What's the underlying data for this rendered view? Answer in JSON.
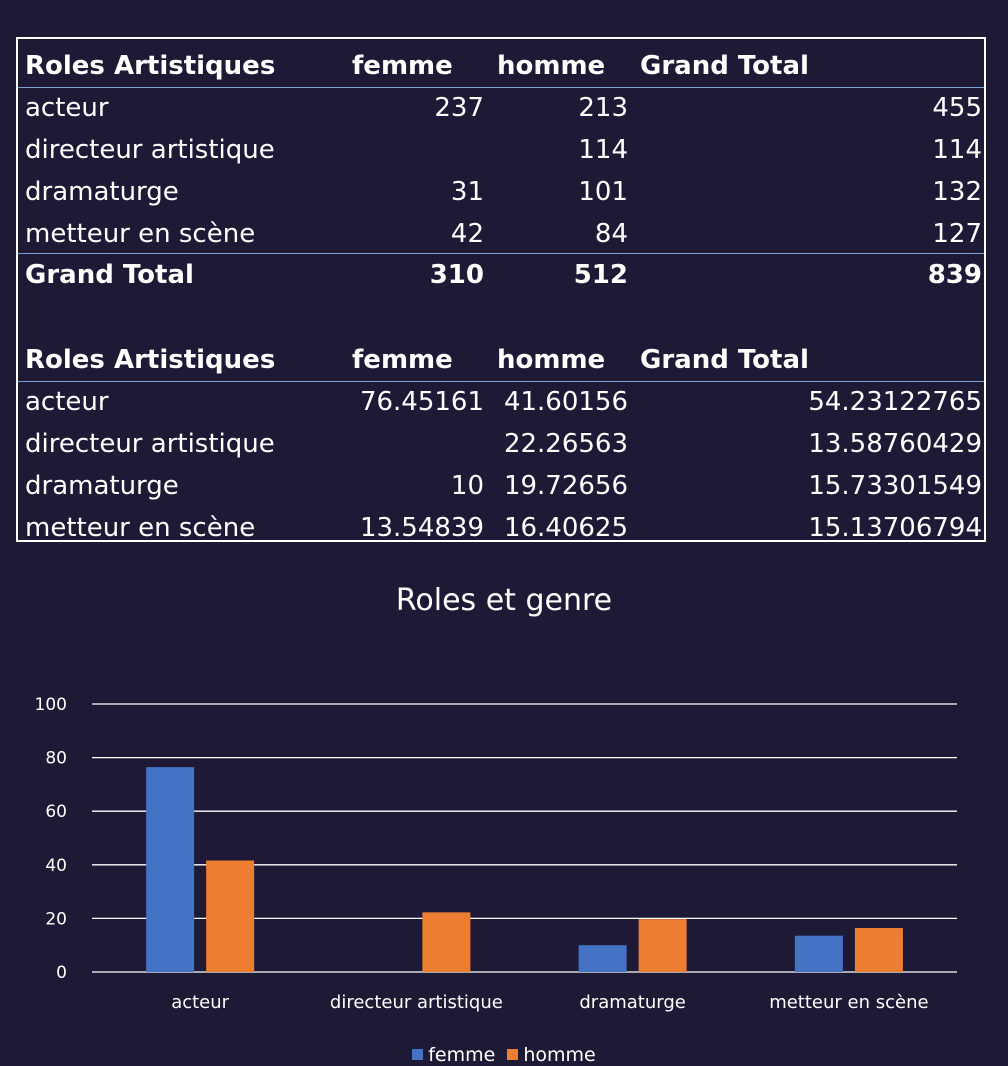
{
  "table1": {
    "headers": {
      "label": "Roles Artistiques",
      "femme": "femme",
      "homme": "homme",
      "total": "Grand Total"
    },
    "rows": [
      {
        "label": "acteur",
        "femme": "237",
        "homme": "213",
        "total": "455"
      },
      {
        "label": "directeur artistique",
        "femme": "",
        "homme": "114",
        "total": "114"
      },
      {
        "label": "dramaturge",
        "femme": "31",
        "homme": "101",
        "total": "132"
      },
      {
        "label": "metteur en scène",
        "femme": "42",
        "homme": "84",
        "total": "127"
      }
    ],
    "total": {
      "label": "Grand Total",
      "femme": "310",
      "homme": "512",
      "total": "839"
    }
  },
  "table2": {
    "headers": {
      "label": "Roles Artistiques",
      "femme": "femme",
      "homme": "homme",
      "total": "Grand Total"
    },
    "rows": [
      {
        "label": "acteur",
        "femme": "76.45161",
        "homme": "41.60156",
        "total": "54.23122765"
      },
      {
        "label": "directeur artistique",
        "femme": "",
        "homme": "22.26563",
        "total": "13.58760429"
      },
      {
        "label": "dramaturge",
        "femme": "10",
        "homme": "19.72656",
        "total": "15.73301549"
      },
      {
        "label": "metteur en scène",
        "femme": "13.54839",
        "homme": "16.40625",
        "total": "15.13706794"
      }
    ]
  },
  "chart_data": {
    "type": "bar",
    "title": "Roles et genre",
    "categories": [
      "acteur",
      "directeur artistique",
      "dramaturge",
      "metteur en scène"
    ],
    "series": [
      {
        "name": "femme",
        "values": [
          76.45161,
          null,
          10,
          13.54839
        ],
        "color": "#4472c4"
      },
      {
        "name": "homme",
        "values": [
          41.60156,
          22.26563,
          19.72656,
          16.40625
        ],
        "color": "#ed7d31"
      }
    ],
    "ylim": [
      0,
      100
    ],
    "yticks": [
      "0",
      "20",
      "40",
      "60",
      "80",
      "100"
    ],
    "grid": true,
    "legend_position": "bottom"
  }
}
